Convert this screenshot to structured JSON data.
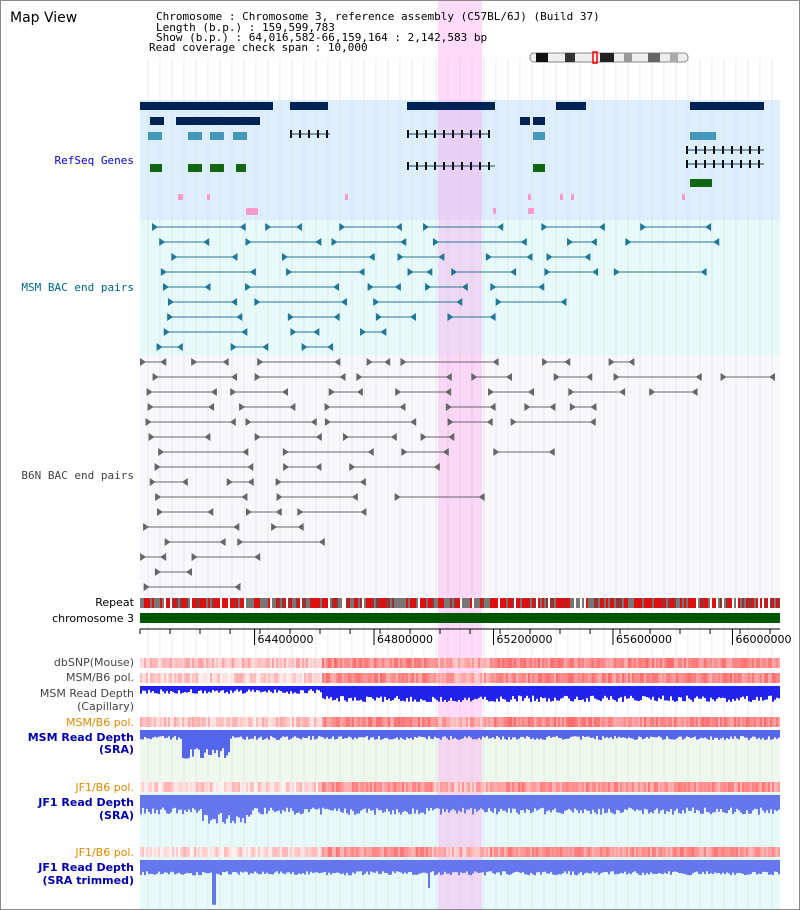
{
  "title": "Map View",
  "header": {
    "lines": [
      {
        "label": "Chromosome    ",
        "value": "Chromosome 3, reference assembly (C57BL/6J) (Build 37)"
      },
      {
        "label": "Length (b.p.) ",
        "value": "159,599,783"
      },
      {
        "label": "  Show (b.p.) ",
        "value": "64,016,582-66,159,164 : 2,142,583 bp"
      },
      {
        "label": "Read coverage check span ",
        "value": "10,000"
      }
    ]
  },
  "tracks": {
    "refseq": "RefSeq Genes",
    "msm_bac": "MSM BAC end pairs",
    "b6n_bac": "B6N BAC end pairs",
    "repeat": "Repeat",
    "chromosome": "chromosome 3",
    "dbsnp": "dbSNP(Mouse)",
    "msm_b6_pol_1": "MSM/B6 pol.",
    "msm_read_depth_cap_1": "MSM Read Depth",
    "msm_read_depth_cap_2": "(Capillary)",
    "msm_b6_pol_2": "MSM/B6 pol.",
    "msm_read_depth_sra_1": "MSM Read Depth",
    "msm_read_depth_sra_2": "(SRA)",
    "jf1_b6_pol_1": "JF1/B6 pol.",
    "jf1_read_depth_sra_1": "JF1 Read Depth",
    "jf1_read_depth_sra_2": "(SRA)",
    "jf1_b6_pol_2": "JF1/B6 pol.",
    "jf1_read_depth_trim_1": "JF1 Read Depth",
    "jf1_read_depth_trim_2": "(SRA trimmed)"
  },
  "axis": {
    "range": [
      64016582,
      66159164
    ],
    "ticks": [
      "64400000",
      "64800000",
      "65200000",
      "65600000",
      "66000000"
    ]
  },
  "colors": {
    "refseq_label": "#0000cc",
    "msm_label": "#006688",
    "gray_label": "#444444",
    "orange_label": "#dd8800",
    "blue_label": "#0000aa",
    "highlight": "#ff99ee",
    "chromosome_bar": "#005500"
  }
}
